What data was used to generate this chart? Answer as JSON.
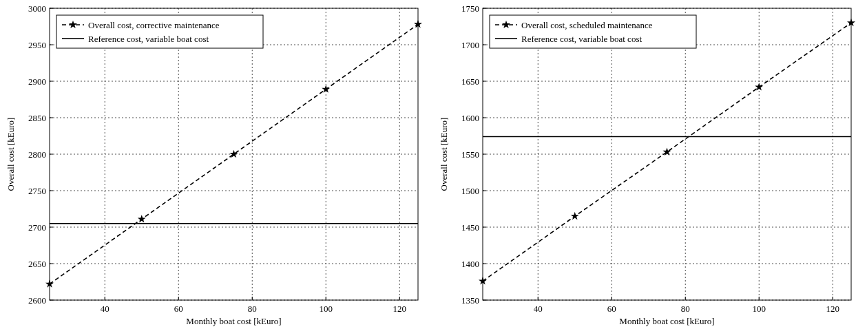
{
  "chart_data": [
    {
      "type": "line",
      "xlabel": "Monthly boat cost [kEuro]",
      "ylabel": "Overall cost [kEuro]",
      "xlim": [
        25,
        125
      ],
      "xticks": [
        40,
        60,
        80,
        100,
        120
      ],
      "ylim": [
        2600,
        3000
      ],
      "yticks": [
        2600,
        2650,
        2700,
        2750,
        2800,
        2850,
        2900,
        2950,
        3000
      ],
      "grid": true,
      "legend": "top left",
      "series": [
        {
          "name": "Overall cost, corrective maintenance",
          "color": "#000000",
          "x": [
            25,
            50,
            75,
            100,
            125
          ],
          "values": [
            2622,
            2711,
            2800,
            2889,
            2978
          ],
          "line_style": "dashed",
          "marker": "star"
        },
        {
          "name": "Reference cost, variable boat cost",
          "color": "#000000",
          "x": [
            25,
            125
          ],
          "values": [
            2705,
            2705
          ],
          "line_style": "solid",
          "marker": "none"
        }
      ]
    },
    {
      "type": "line",
      "xlabel": "Monthly boat cost [kEuro]",
      "ylabel": "Overall cost [kEuro]",
      "xlim": [
        25,
        125
      ],
      "xticks": [
        40,
        60,
        80,
        100,
        120
      ],
      "ylim": [
        1350,
        1750
      ],
      "yticks": [
        1350,
        1400,
        1450,
        1500,
        1550,
        1600,
        1650,
        1700,
        1750
      ],
      "grid": true,
      "legend": "top left",
      "series": [
        {
          "name": "Overall cost, scheduled maintenance",
          "color": "#000000",
          "x": [
            25,
            50,
            75,
            100,
            125
          ],
          "values": [
            1376,
            1465,
            1553,
            1642,
            1730
          ],
          "line_style": "dashed",
          "marker": "star"
        },
        {
          "name": "Reference cost, variable boat cost",
          "color": "#000000",
          "x": [
            25,
            125
          ],
          "values": [
            1574,
            1574
          ],
          "line_style": "solid",
          "marker": "none"
        }
      ]
    }
  ]
}
